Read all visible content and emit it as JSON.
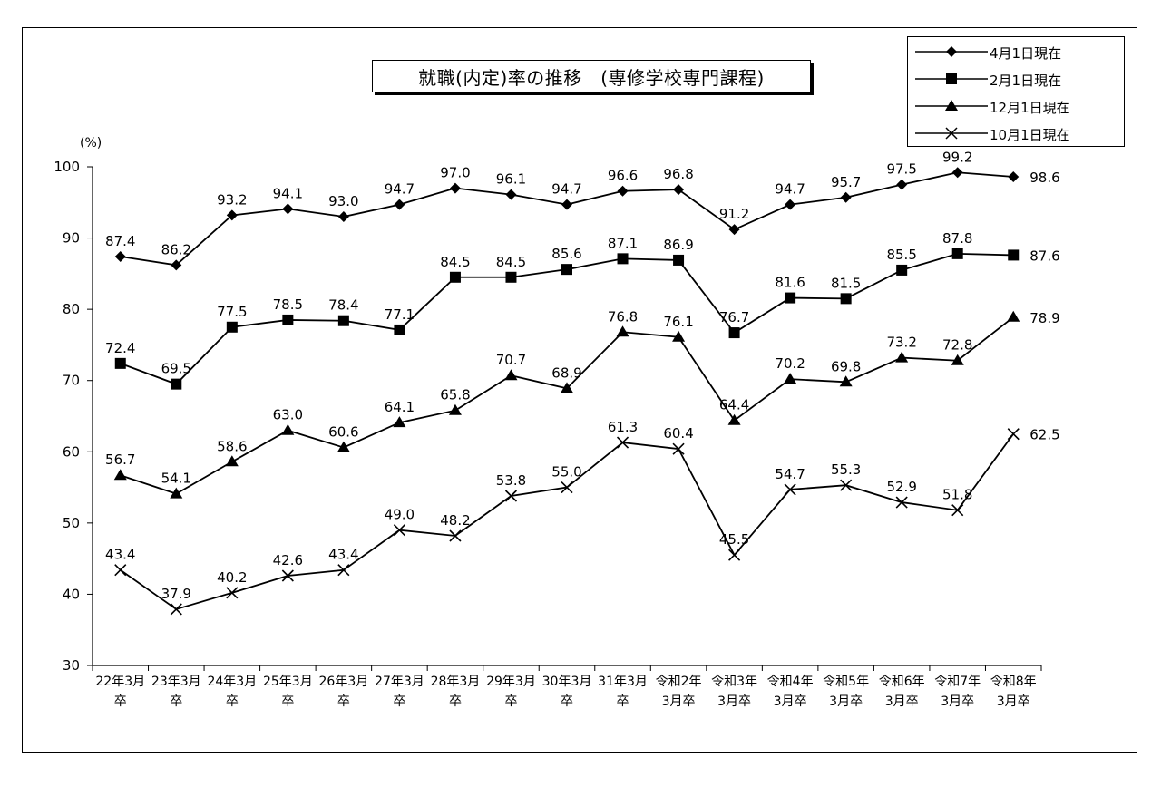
{
  "chart_data": {
    "type": "line",
    "title": "就職(内定)率の推移　(専修学校専門課程)",
    "ylabel": "(%)",
    "ylim": [
      30,
      100
    ],
    "yticks": [
      "30",
      "40",
      "50",
      "60",
      "70",
      "80",
      "90",
      "100"
    ],
    "grid": false,
    "legend_position": "top-right",
    "categories": [
      [
        "22年3月",
        "卒"
      ],
      [
        "23年3月",
        "卒"
      ],
      [
        "24年3月",
        "卒"
      ],
      [
        "25年3月",
        "卒"
      ],
      [
        "26年3月",
        "卒"
      ],
      [
        "27年3月",
        "卒"
      ],
      [
        "28年3月",
        "卒"
      ],
      [
        "29年3月",
        "卒"
      ],
      [
        "30年3月",
        "卒"
      ],
      [
        "31年3月",
        "卒"
      ],
      [
        "令和2年",
        "3月卒"
      ],
      [
        "令和3年",
        "3月卒"
      ],
      [
        "令和4年",
        "3月卒"
      ],
      [
        "令和5年",
        "3月卒"
      ],
      [
        "令和6年",
        "3月卒"
      ],
      [
        "令和7年",
        "3月卒"
      ],
      [
        "令和8年",
        "3月卒"
      ]
    ],
    "series": [
      {
        "name": "4月1日現在",
        "marker": "diamond",
        "values": [
          87.4,
          86.2,
          93.2,
          94.1,
          93.0,
          94.7,
          97.0,
          96.1,
          94.7,
          96.6,
          96.8,
          91.2,
          94.7,
          95.7,
          97.5,
          99.2,
          98.6
        ],
        "labels": [
          "87.4",
          "86.2",
          "93.2",
          "94.1",
          "93.0",
          "94.7",
          "97.0",
          "96.1",
          "94.7",
          "96.6",
          "96.8",
          "91.2",
          "94.7",
          "95.7",
          "97.5",
          "99.2",
          "98.6"
        ]
      },
      {
        "name": "2月1日現在",
        "marker": "square",
        "values": [
          72.4,
          69.5,
          77.5,
          78.5,
          78.4,
          77.1,
          84.5,
          84.5,
          85.6,
          87.1,
          86.9,
          76.7,
          81.6,
          81.5,
          85.5,
          87.8,
          87.6
        ],
        "labels": [
          "72.4",
          "69.5",
          "77.5",
          "78.5",
          "78.4",
          "77.1",
          "84.5",
          "84.5",
          "85.6",
          "87.1",
          "86.9",
          "76.7",
          "81.6",
          "81.5",
          "85.5",
          "87.8",
          "87.6"
        ]
      },
      {
        "name": "12月1日現在",
        "marker": "triangle",
        "values": [
          56.7,
          54.1,
          58.6,
          63.0,
          60.6,
          64.1,
          65.8,
          70.7,
          68.9,
          76.8,
          76.1,
          64.4,
          70.2,
          69.8,
          73.2,
          72.8,
          78.9
        ],
        "labels": [
          "56.7",
          "54.1",
          "58.6",
          "63.0",
          "60.6",
          "64.1",
          "65.8",
          "70.7",
          "68.9",
          "76.8",
          "76.1",
          "64.4",
          "70.2",
          "69.8",
          "73.2",
          "72.8",
          "78.9"
        ]
      },
      {
        "name": "10月1日現在",
        "marker": "x",
        "values": [
          43.4,
          37.9,
          40.2,
          42.6,
          43.4,
          49.0,
          48.2,
          53.8,
          55.0,
          61.3,
          60.4,
          45.5,
          54.7,
          55.3,
          52.9,
          51.8,
          62.5
        ],
        "labels": [
          "43.4",
          "37.9",
          "40.2",
          "42.6",
          "43.4",
          "49.0",
          "48.2",
          "53.8",
          "55.0",
          "61.3",
          "60.4",
          "45.5",
          "54.7",
          "55.3",
          "52.9",
          "51.8",
          "62.5"
        ]
      }
    ]
  }
}
